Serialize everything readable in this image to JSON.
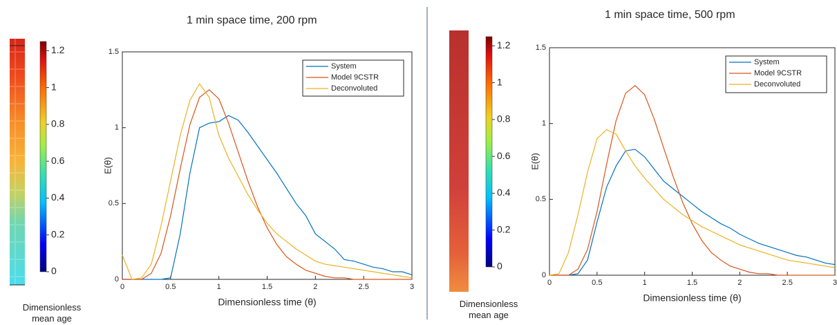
{
  "chart_data": [
    {
      "type": "line",
      "title": "1 min space time, 200 rpm",
      "x_label": "Dimensionless time (θ)",
      "y_label": "E(θ)",
      "x": [
        0,
        0.1,
        0.2,
        0.3,
        0.4,
        0.5,
        0.6,
        0.7,
        0.8,
        0.9,
        1,
        1.1,
        1.2,
        1.3,
        1.4,
        1.5,
        1.6,
        1.7,
        1.8,
        1.9,
        2,
        2.1,
        2.2,
        2.3,
        2.4,
        2.5,
        2.6,
        2.7,
        2.8,
        2.9,
        3
      ],
      "series": [
        {
          "name": "System",
          "color": "#0072bd",
          "values": [
            0,
            0,
            0,
            0,
            0,
            0.01,
            0.3,
            0.7,
            1.0,
            1.03,
            1.04,
            1.08,
            1.05,
            0.97,
            0.88,
            0.79,
            0.7,
            0.6,
            0.5,
            0.42,
            0.3,
            0.25,
            0.2,
            0.13,
            0.12,
            0.1,
            0.08,
            0.07,
            0.05,
            0.05,
            0.03
          ]
        },
        {
          "name": "Model 9CSTR",
          "color": "#d95319",
          "values": [
            0,
            0,
            0,
            0.04,
            0.17,
            0.42,
            0.73,
            1.02,
            1.2,
            1.25,
            1.19,
            1.03,
            0.84,
            0.65,
            0.48,
            0.34,
            0.23,
            0.15,
            0.1,
            0.06,
            0.04,
            0.02,
            0.01,
            0.01,
            0,
            0,
            0,
            0,
            0,
            0,
            0
          ]
        },
        {
          "name": "Deconvoluted",
          "color": "#edb120",
          "values": [
            0.16,
            0,
            0.01,
            0.1,
            0.35,
            0.65,
            0.95,
            1.18,
            1.29,
            1.2,
            0.95,
            0.8,
            0.68,
            0.56,
            0.46,
            0.37,
            0.3,
            0.25,
            0.2,
            0.16,
            0.12,
            0.1,
            0.09,
            0.08,
            0.07,
            0.06,
            0.05,
            0.04,
            0.03,
            0.02,
            0.01
          ]
        }
      ],
      "xlim": [
        0,
        3
      ],
      "xticks": [
        0,
        0.5,
        1,
        1.5,
        2,
        2.5,
        3
      ],
      "ylim": [
        0,
        1.5
      ],
      "yticks": [
        0,
        0.5,
        1,
        1.5
      ],
      "legend": "top-right",
      "colorbar": {
        "label": "Dimensionless mean age",
        "lim": [
          0,
          1.25
        ],
        "ticks": [
          0,
          0.2,
          0.4,
          0.6,
          0.8,
          1,
          1.2
        ]
      }
    },
    {
      "type": "line",
      "title": "1 min space time, 500 rpm",
      "x_label": "Dimensionless time (θ)",
      "y_label": "E(θ)",
      "x": [
        0,
        0.1,
        0.2,
        0.3,
        0.4,
        0.5,
        0.6,
        0.7,
        0.8,
        0.9,
        1,
        1.1,
        1.2,
        1.3,
        1.4,
        1.5,
        1.6,
        1.7,
        1.8,
        1.9,
        2,
        2.1,
        2.2,
        2.3,
        2.4,
        2.5,
        2.6,
        2.7,
        2.8,
        2.9,
        3
      ],
      "series": [
        {
          "name": "System",
          "color": "#0072bd",
          "values": [
            0,
            0,
            0,
            0.01,
            0.1,
            0.35,
            0.58,
            0.72,
            0.82,
            0.83,
            0.78,
            0.7,
            0.62,
            0.57,
            0.52,
            0.47,
            0.42,
            0.38,
            0.34,
            0.31,
            0.27,
            0.24,
            0.21,
            0.19,
            0.17,
            0.15,
            0.13,
            0.12,
            0.1,
            0.08,
            0.07
          ]
        },
        {
          "name": "Model 9CSTR",
          "color": "#d95319",
          "values": [
            0,
            0,
            0,
            0.04,
            0.17,
            0.42,
            0.73,
            1.02,
            1.2,
            1.25,
            1.19,
            1.03,
            0.84,
            0.65,
            0.48,
            0.34,
            0.23,
            0.15,
            0.1,
            0.06,
            0.04,
            0.02,
            0.01,
            0.01,
            0,
            0,
            0,
            0,
            0,
            0,
            0
          ]
        },
        {
          "name": "Deconvoluted",
          "color": "#edb120",
          "values": [
            0,
            0.01,
            0.15,
            0.4,
            0.68,
            0.9,
            0.96,
            0.93,
            0.82,
            0.72,
            0.64,
            0.57,
            0.5,
            0.45,
            0.4,
            0.36,
            0.32,
            0.29,
            0.26,
            0.23,
            0.2,
            0.18,
            0.16,
            0.14,
            0.12,
            0.1,
            0.09,
            0.08,
            0.07,
            0.06,
            0.05
          ]
        }
      ],
      "xlim": [
        0,
        3
      ],
      "xticks": [
        0,
        0.5,
        1,
        1.5,
        2,
        2.5,
        3
      ],
      "ylim": [
        0,
        1.5
      ],
      "yticks": [
        0,
        0.5,
        1,
        1.5
      ],
      "legend": "top-right",
      "colorbar": {
        "label": "Dimensionless mean age",
        "lim": [
          0,
          1.25
        ],
        "ticks": [
          0,
          0.2,
          0.4,
          0.6,
          0.8,
          1,
          1.2
        ]
      }
    }
  ]
}
